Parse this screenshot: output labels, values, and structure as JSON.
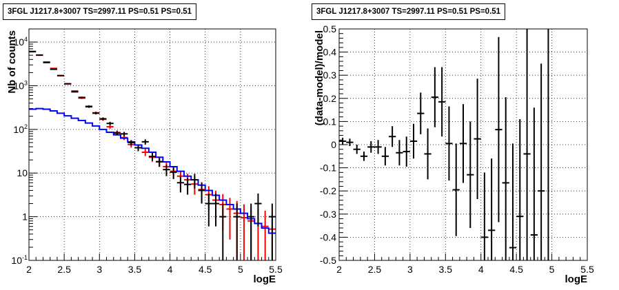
{
  "chart_data": [
    {
      "type": "histogram",
      "title": "3FGL J1217.8+3007 TS=2997.11 PS=0.51 PS=0.51",
      "xlabel": "logE",
      "ylabel": "Nb of counts",
      "xlim": [
        2,
        5.5
      ],
      "ylim": [
        0.1,
        20000
      ],
      "yscale": "log",
      "grid": true,
      "x_ticks": [
        "2",
        "2.5",
        "3",
        "3.5",
        "4",
        "4.5",
        "5",
        "5.5"
      ],
      "y_ticks": [
        "10^{-1}",
        "1",
        "10",
        "10^{2}",
        "10^{3}",
        "10^{4}"
      ],
      "bin_width": 0.1,
      "series": [
        {
          "color": "#ff0000",
          "style": "model with error bars",
          "x": [
            2.05,
            2.15,
            2.25,
            2.35,
            2.45,
            2.55,
            2.65,
            2.75,
            2.85,
            2.95,
            3.05,
            3.15,
            3.25,
            3.35,
            3.45,
            3.55,
            3.65,
            3.75,
            3.85,
            3.95,
            4.05,
            4.15,
            4.25,
            4.35,
            4.45,
            4.55,
            4.65,
            4.75,
            4.85,
            4.95,
            5.05,
            5.15,
            5.25,
            5.35,
            5.45
          ],
          "values": [
            6000,
            5000,
            3500,
            2500,
            1700,
            1100,
            760,
            520,
            340,
            240,
            170,
            115,
            85,
            65,
            45,
            38,
            30,
            23,
            18,
            14,
            11,
            8.5,
            7,
            5.6,
            4.2,
            3.2,
            2.4,
            1.9,
            1.5,
            1.2,
            0.95,
            0.8,
            0.7,
            0.6,
            0.52
          ],
          "errors": [
            77,
            71,
            59,
            50,
            41,
            33,
            28,
            23,
            18,
            15,
            13,
            11,
            9.2,
            8.1,
            6.7,
            6.2,
            5.5,
            4.8,
            4.2,
            3.7,
            3.3,
            2.9,
            2.6,
            2.4,
            2.0,
            1.8,
            1.55,
            1.4,
            1.2,
            1.1,
            0.97,
            0.9,
            0.84,
            0.77,
            0.72
          ]
        },
        {
          "color": "#000000",
          "style": "data points",
          "x": [
            2.05,
            2.15,
            2.25,
            2.35,
            2.45,
            2.55,
            2.65,
            2.75,
            2.85,
            2.95,
            3.05,
            3.15,
            3.25,
            3.35,
            3.45,
            3.55,
            3.65,
            3.75,
            3.85,
            3.95,
            4.05,
            4.15,
            4.25,
            4.35,
            4.45,
            4.55,
            4.65,
            4.75,
            4.95,
            5.15,
            5.25,
            5.45
          ],
          "values": [
            6100,
            5050,
            3400,
            2380,
            1710,
            1110,
            725,
            540,
            330,
            235,
            175,
            137,
            82,
            79,
            50,
            38,
            52,
            24,
            18.3,
            12,
            10.5,
            6,
            5.5,
            7,
            4,
            2,
            2,
            1,
            1,
            1,
            2,
            1
          ],
          "errors": [
            78,
            71,
            58,
            49,
            41,
            33,
            27,
            23,
            18,
            15,
            13,
            12,
            9,
            8.9,
            7,
            6.2,
            7.2,
            4.9,
            4.3,
            3.5,
            3.2,
            2.4,
            2.3,
            2.6,
            2,
            1.4,
            1.4,
            1,
            1,
            1,
            1.4,
            1
          ]
        },
        {
          "color": "#0000ff",
          "style": "step",
          "bin_edges": [
            2.0,
            2.1,
            2.2,
            2.3,
            2.4,
            2.5,
            2.6,
            2.7,
            2.8,
            2.9,
            3.0,
            3.1,
            3.2,
            3.3,
            3.4,
            3.5,
            3.6,
            3.7,
            3.8,
            3.9,
            4.0,
            4.1,
            4.2,
            4.3,
            4.4,
            4.5,
            4.6,
            4.7,
            4.8,
            4.9,
            5.0,
            5.1,
            5.2,
            5.3,
            5.4,
            5.5
          ],
          "values": [
            290,
            300,
            290,
            265,
            235,
            205,
            180,
            160,
            140,
            120,
            100,
            86,
            75,
            63,
            52,
            44,
            37,
            30,
            23,
            18,
            14,
            11,
            8.5,
            7,
            5.3,
            4,
            3.1,
            2.4,
            1.9,
            1.5,
            1.2,
            0.9,
            0.7,
            0.55,
            0.42
          ]
        }
      ]
    },
    {
      "type": "scatter",
      "title": "3FGL J1217.8+3007 TS=2997.11 PS=0.51 PS=0.51",
      "xlabel": "logE",
      "ylabel": "(data-model)/model",
      "xlim": [
        2,
        5.5
      ],
      "ylim": [
        -0.5,
        0.5
      ],
      "grid": true,
      "x_ticks": [
        "2",
        "2.5",
        "3",
        "3.5",
        "4",
        "4.5",
        "5",
        "5.5"
      ],
      "y_ticks": [
        "-0.5",
        "-0.4",
        "-0.3",
        "-0.2",
        "-0.1",
        "0",
        "0.1",
        "0.2",
        "0.3",
        "0.4",
        "0.5"
      ],
      "bin_width": 0.1,
      "series": [
        {
          "color": "#000000",
          "x": [
            2.05,
            2.15,
            2.25,
            2.35,
            2.45,
            2.55,
            2.65,
            2.75,
            2.85,
            2.95,
            3.05,
            3.15,
            3.25,
            3.35,
            3.45,
            3.55,
            3.65,
            3.75,
            3.85,
            3.95,
            4.05,
            4.15,
            4.25,
            4.35,
            4.45,
            4.55,
            4.65,
            4.75,
            4.85,
            4.95
          ],
          "values": [
            0.015,
            0.01,
            -0.02,
            -0.05,
            -0.01,
            -0.01,
            -0.05,
            0.035,
            -0.035,
            -0.03,
            0.015,
            0.135,
            -0.04,
            0.205,
            0.185,
            0.005,
            -0.195,
            0.005,
            -0.13,
            0.025,
            -0.4,
            -0.37,
            0.065,
            -0.165,
            -0.445,
            -0.31,
            -0.04,
            -0.39,
            -0.2,
            null
          ],
          "errors": [
            0.015,
            0.016,
            0.02,
            0.02,
            0.025,
            0.03,
            0.04,
            0.045,
            0.055,
            0.065,
            0.075,
            0.09,
            0.11,
            0.13,
            0.15,
            0.16,
            0.2,
            0.17,
            0.23,
            0.26,
            0.28,
            0.31,
            0.4,
            0.37,
            0.45,
            0.42,
            0.55,
            0.55,
            0.55,
            0.0
          ]
        }
      ]
    }
  ]
}
